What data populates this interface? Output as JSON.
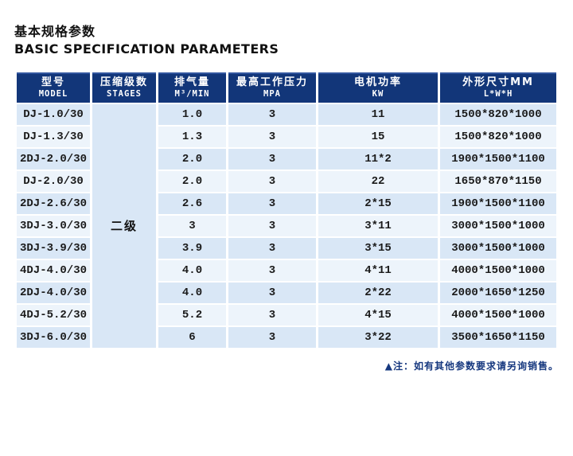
{
  "page": {
    "title_zh": "基本规格参数",
    "title_en": "BASIC SPECIFICATION PARAMETERS",
    "note": "▲注：如有其他参数要求请另询销售。"
  },
  "table": {
    "columns": [
      {
        "zh": "型号",
        "en": "MODEL"
      },
      {
        "zh": "压缩级数",
        "en": "STAGES"
      },
      {
        "zh": "排气量",
        "en": "M³/MIN"
      },
      {
        "zh": "最高工作压力",
        "en": "MPA"
      },
      {
        "zh": "电机功率",
        "en": "KW"
      },
      {
        "zh": "外形尺寸MM",
        "en": "L*W*H"
      }
    ],
    "stages_value": "二级",
    "rows": [
      {
        "model": "DJ-1.0/30",
        "displacement": "1.0",
        "pressure": "3",
        "power": "11",
        "dimensions": "1500*820*1000"
      },
      {
        "model": "DJ-1.3/30",
        "displacement": "1.3",
        "pressure": "3",
        "power": "15",
        "dimensions": "1500*820*1000"
      },
      {
        "model": "2DJ-2.0/30",
        "displacement": "2.0",
        "pressure": "3",
        "power": "11*2",
        "dimensions": "1900*1500*1100"
      },
      {
        "model": "DJ-2.0/30",
        "displacement": "2.0",
        "pressure": "3",
        "power": "22",
        "dimensions": "1650*870*1150"
      },
      {
        "model": "2DJ-2.6/30",
        "displacement": "2.6",
        "pressure": "3",
        "power": "2*15",
        "dimensions": "1900*1500*1100"
      },
      {
        "model": "3DJ-3.0/30",
        "displacement": "3",
        "pressure": "3",
        "power": "3*11",
        "dimensions": "3000*1500*1000"
      },
      {
        "model": "3DJ-3.9/30",
        "displacement": "3.9",
        "pressure": "3",
        "power": "3*15",
        "dimensions": "3000*1500*1000"
      },
      {
        "model": "4DJ-4.0/30",
        "displacement": "4.0",
        "pressure": "3",
        "power": "4*11",
        "dimensions": "4000*1500*1000"
      },
      {
        "model": "2DJ-4.0/30",
        "displacement": "4.0",
        "pressure": "3",
        "power": "2*22",
        "dimensions": "2000*1650*1250"
      },
      {
        "model": "4DJ-5.2/30",
        "displacement": "5.2",
        "pressure": "3",
        "power": "4*15",
        "dimensions": "4000*1500*1000"
      },
      {
        "model": "3DJ-6.0/30",
        "displacement": "6",
        "pressure": "3",
        "power": "3*22",
        "dimensions": "3500*1650*1150"
      }
    ],
    "colors": {
      "header_bg": "#123679",
      "header_top_edge": "#31569f",
      "header_text": "#ffffff",
      "row_odd_bg": "#d9e7f6",
      "row_even_bg": "#edf4fb",
      "body_text": "#1a1a1a",
      "note_color": "#16387f"
    }
  }
}
